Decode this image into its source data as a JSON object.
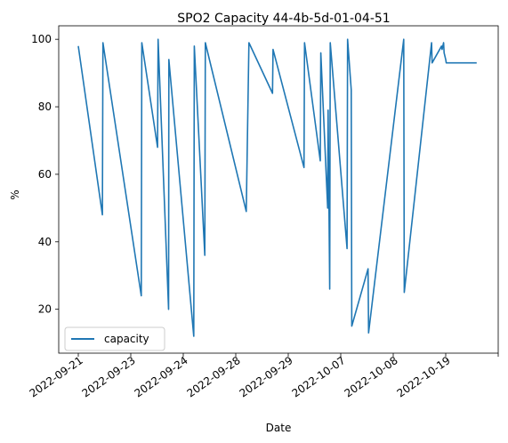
{
  "chart_data": {
    "type": "line",
    "title": "SPO2 Capacity 44-4b-5d-01-04-51",
    "xlabel": "Date",
    "ylabel": "%",
    "ylim": [
      7,
      104
    ],
    "yticks": [
      20,
      40,
      60,
      80,
      100
    ],
    "xticks": [
      "2022-09-21",
      "2022-09-23",
      "2022-09-24",
      "2022-09-28",
      "2022-09-29",
      "2022-10-07",
      "2022-10-08",
      "2022-10-19"
    ],
    "x_scale": "ordinal-dates",
    "grid": false,
    "legend": {
      "position": "lower-left",
      "entries": [
        "capacity"
      ]
    },
    "colors": {
      "capacity": "#1f77b4"
    },
    "series": [
      {
        "name": "capacity",
        "x": [
          0.0,
          0.46,
          0.47,
          1.2,
          1.21,
          1.51,
          1.52,
          1.72,
          1.725,
          1.95,
          2.2,
          2.21,
          2.41,
          2.42,
          3.2,
          3.25,
          3.7,
          3.71,
          4.3,
          4.31,
          4.61,
          4.62,
          4.75,
          4.76,
          4.79,
          4.8,
          5.12,
          5.13,
          5.2,
          5.21,
          5.52,
          5.53,
          6.2,
          6.21,
          6.73,
          6.74,
          6.92,
          6.93,
          6.96,
          6.97,
          7.0,
          7.01,
          7.58,
          7.59
        ],
        "y": [
          98,
          48,
          99,
          24,
          99,
          68,
          100,
          20,
          94,
          55,
          12,
          98,
          36,
          99,
          49,
          99,
          84,
          97,
          62,
          99,
          64,
          96,
          50,
          79,
          26,
          99,
          38,
          100,
          85,
          15,
          32,
          13,
          100,
          25,
          99,
          93,
          98,
          97,
          99,
          96,
          94,
          93,
          93,
          93
        ]
      }
    ]
  }
}
